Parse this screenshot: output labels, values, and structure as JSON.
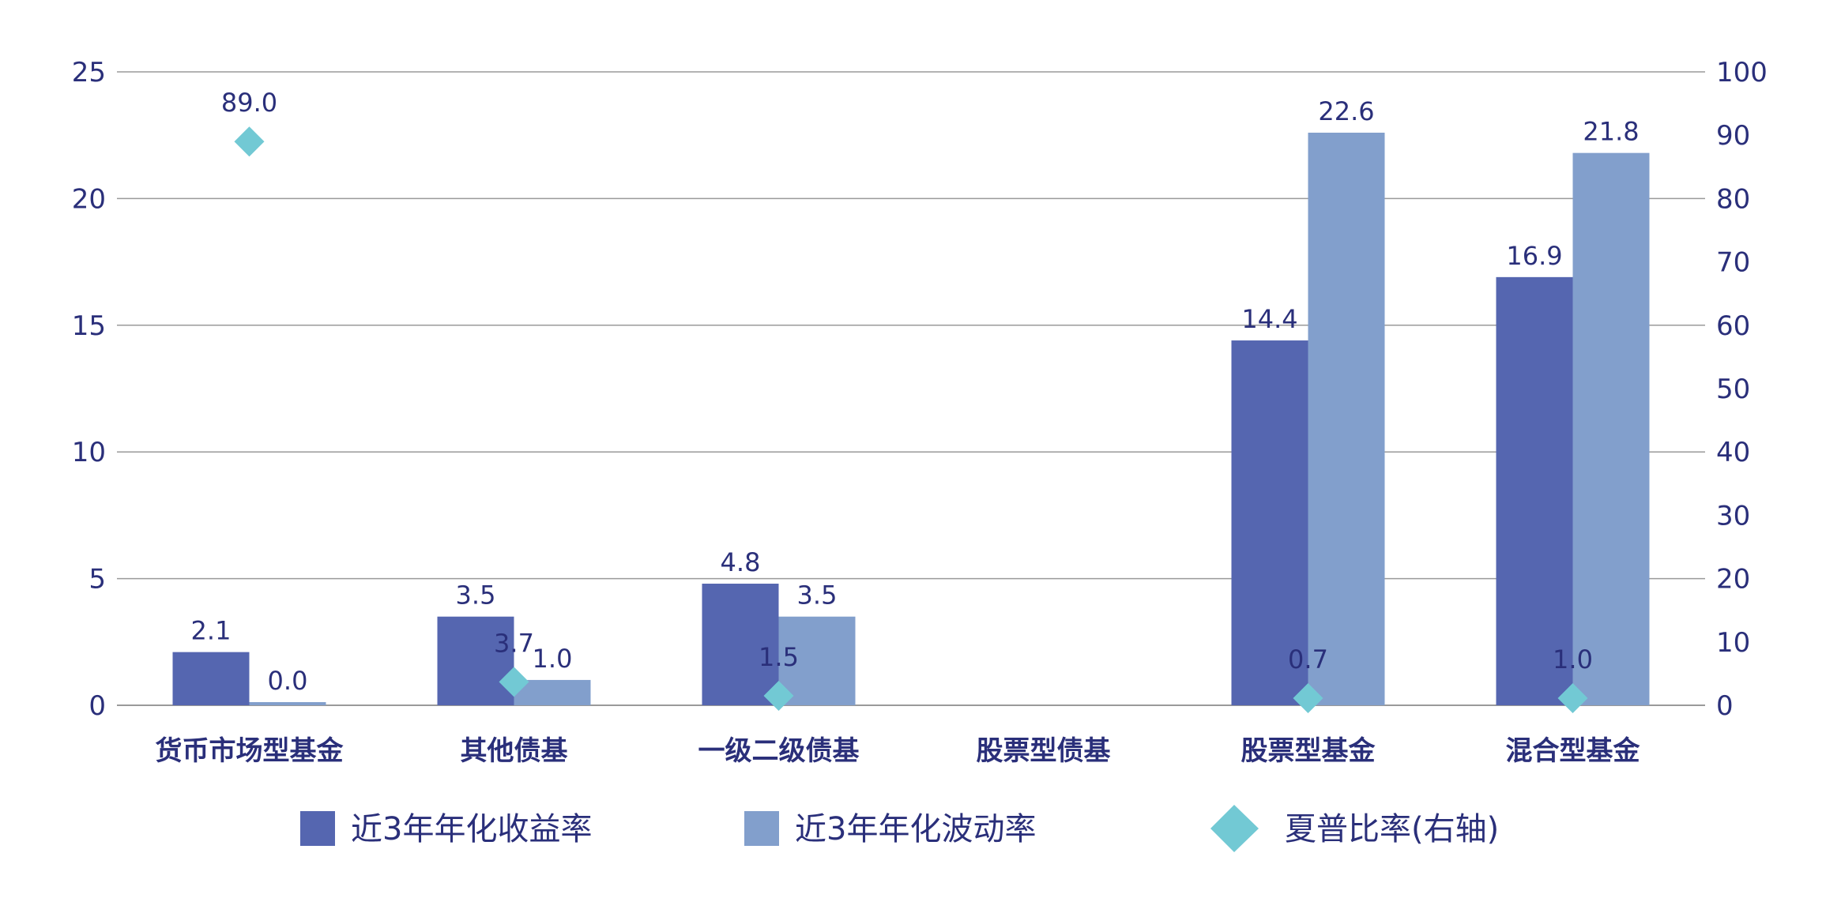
{
  "chart_data": {
    "type": "bar",
    "categories": [
      "货币市场型基金",
      "其他债基",
      "一级二级债基",
      "股票型债基",
      "股票型基金",
      "混合型基金"
    ],
    "series": [
      {
        "name": "近3年年化收益率",
        "kind": "bar",
        "axis": "left",
        "color": "#5566b0",
        "values": [
          2.1,
          3.5,
          4.8,
          null,
          14.4,
          16.9
        ]
      },
      {
        "name": "近3年年化波动率",
        "kind": "bar",
        "axis": "left",
        "color": "#829fcc",
        "values": [
          0.0,
          1.0,
          3.5,
          null,
          22.6,
          21.8
        ]
      },
      {
        "name": "夏普比率(右轴)",
        "kind": "scatter",
        "marker": "diamond",
        "axis": "right",
        "color": "#72c9d4",
        "values": [
          89.0,
          3.7,
          1.5,
          null,
          0.7,
          1.0
        ]
      }
    ],
    "yleft": {
      "ticks": [
        0,
        5,
        10,
        15,
        20,
        25
      ],
      "ylim": [
        0,
        25
      ]
    },
    "yright": {
      "ticks": [
        0,
        10,
        20,
        30,
        40,
        50,
        60,
        70,
        80,
        90,
        100
      ],
      "ylim": [
        0,
        100
      ]
    },
    "grid": true,
    "legend_position": "bottom",
    "text_color": "#2a2f7a",
    "grid_color": "#9a9a9a"
  }
}
